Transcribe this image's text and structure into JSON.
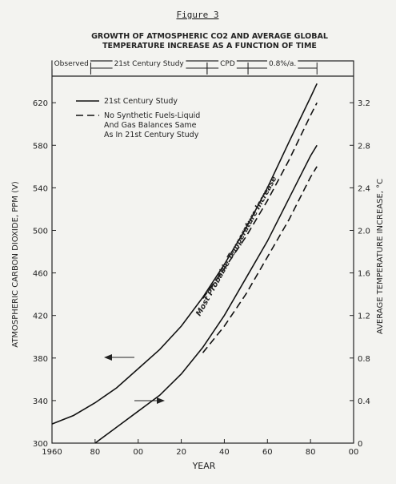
{
  "chart_data": {
    "type": "line",
    "figure_label": "Figure 3",
    "title": [
      "GROWTH OF ATMOSPHERIC CO2 AND AVERAGE GLOBAL",
      "TEMPERATURE INCREASE AS A FUNCTION OF TIME"
    ],
    "x_label": "YEAR",
    "y_label": "ATMOSPHERIC CARBON DIOXIDE, PPM (V)",
    "y2_label": "AVERAGE TEMPERATURE INCREASE, °C",
    "annotation": "Most Probable Temperature Increase",
    "periods": [
      {
        "label": "Observed",
        "start": 1960,
        "end": 1978
      },
      {
        "label": "21st Century Study",
        "start": 1978,
        "end": 2032
      },
      {
        "label": "CPD",
        "start": 2032,
        "end": 2051
      },
      {
        "label": "0.8%/a.",
        "start": 2051,
        "end": 2083
      }
    ],
    "x": [
      1960,
      1970,
      1980,
      1990,
      2000,
      2010,
      2020,
      2030,
      2040,
      2050,
      2060,
      2070,
      2080,
      2083
    ],
    "series": [
      {
        "name": "21st Century Study",
        "color": "#111111",
        "style": "solid",
        "values": [
          318,
          326,
          338,
          352,
          370,
          388,
          410,
          437,
          468,
          502,
          540,
          583,
          625,
          638
        ]
      },
      {
        "name": "No Synthetic Fuels-Liquid And Gas Balances Same As In 21st Century Study",
        "color": "#111111",
        "style": "dashed",
        "values": [
          null,
          null,
          null,
          null,
          null,
          null,
          null,
          436,
          464,
          494,
          528,
          566,
          608,
          620
        ]
      },
      {
        "color": "#111111",
        "style": "solid",
        "axis": "y2",
        "values": [
          null,
          null,
          0,
          0.15,
          0.3,
          0.45,
          0.65,
          0.9,
          1.2,
          1.55,
          1.9,
          2.3,
          2.7,
          2.8
        ]
      },
      {
        "color": "#111111",
        "style": "dashed",
        "axis": "y2",
        "values": [
          null,
          null,
          null,
          null,
          null,
          null,
          null,
          0.85,
          1.1,
          1.4,
          1.75,
          2.1,
          2.5,
          2.6
        ]
      }
    ],
    "xlim": [
      1960,
      2100
    ],
    "xticks": [
      1960,
      {
        "value": 1980,
        "label": "80"
      },
      {
        "value": 2000,
        "label": "00"
      },
      {
        "value": 2020,
        "label": "20"
      },
      {
        "value": 2040,
        "label": "40"
      },
      {
        "value": 2060,
        "label": "60"
      },
      {
        "value": 2080,
        "label": "80"
      },
      {
        "value": 2100,
        "label": "00"
      }
    ],
    "ylim": [
      300,
      645
    ],
    "yticks": [
      300,
      340,
      380,
      420,
      460,
      500,
      540,
      580,
      620
    ],
    "y2lim": [
      0,
      3.45
    ],
    "y2ticks": [
      0,
      0.4,
      0.8,
      1.2,
      1.6,
      {
        "value": 2,
        "label": "2.0"
      },
      2.4,
      2.8,
      3.2
    ]
  }
}
